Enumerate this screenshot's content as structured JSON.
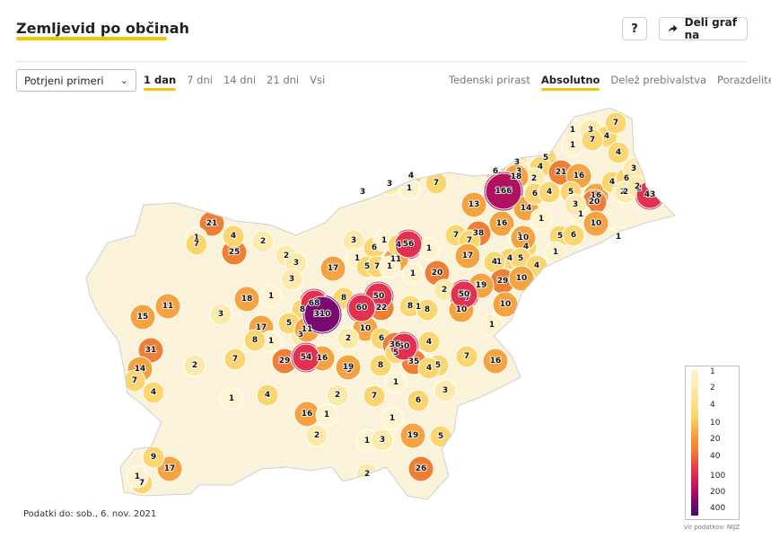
{
  "header": {
    "title": "Zemljevid po občinah",
    "help_label": "?",
    "share_label": "Deli graf na"
  },
  "controls": {
    "select_value": "Potrjeni primeri",
    "period_tabs": [
      "1 dan",
      "7 dni",
      "14 dni",
      "21 dni",
      "Vsi"
    ],
    "period_active": "1 dan",
    "mode_tabs": [
      "Tedenski prirast",
      "Absolutno",
      "Delež prebivalstva",
      "Porazdelitev"
    ],
    "mode_active": "Absolutno"
  },
  "footer": {
    "data_date": "Podatki do: sob., 6. nov. 2021",
    "source": "vir podatkov: NIJZ"
  },
  "legend": {
    "ticks": [
      "1",
      "2",
      "4",
      "10",
      "20",
      "40",
      "100",
      "200",
      "400"
    ]
  },
  "colors": {
    "accent": "#f5c400",
    "scale": [
      "#fff2cc",
      "#fde9a8",
      "#fbd56e",
      "#f5a340",
      "#ee7f35",
      "#e23050",
      "#b0125f",
      "#7b0a6e",
      "#3f0a6b"
    ],
    "no_data": "#ffffff"
  },
  "map_labels": [
    "1",
    "3",
    "4",
    "7",
    "1",
    "7",
    "4",
    "6",
    "3",
    "5",
    "4",
    "3",
    "2",
    "21",
    "16",
    "7",
    "5",
    "16",
    "4",
    "6",
    "2",
    "2",
    "3",
    "18",
    "20",
    "43",
    "2",
    "2",
    "4",
    "7",
    "1",
    "3",
    "3",
    "13",
    "166",
    "14",
    "6",
    "4",
    "1",
    "10",
    "1",
    "16",
    "1",
    "4",
    "1",
    "3",
    "56",
    "1",
    "7",
    "38",
    "7",
    "10",
    "1",
    "4",
    "5",
    "4",
    "5",
    "6",
    "1",
    "21",
    "25",
    "1",
    "4",
    "2",
    "17",
    "2",
    "3",
    "1",
    "6",
    "11",
    "20",
    "17",
    "4",
    "5",
    "1",
    "4",
    "7",
    "1",
    "1",
    "8",
    "1",
    "3",
    "3",
    "11",
    "29",
    "10",
    "1",
    "50",
    "7",
    "8",
    "7",
    "18",
    "68",
    "8",
    "60",
    "22",
    "8",
    "50",
    "19",
    "10",
    "2",
    "10",
    "1",
    "11",
    "15",
    "3",
    "17",
    "8",
    "3",
    "5",
    "11",
    "310",
    "10",
    "6",
    "4",
    "50",
    "2",
    "1",
    "31",
    "2",
    "7",
    "8",
    "3",
    "29",
    "54",
    "16",
    "19",
    "8",
    "36",
    "35",
    "5",
    "16",
    "7",
    "5",
    "14",
    "4",
    "7",
    "1",
    "4",
    "6",
    "1",
    "7",
    "2",
    "16",
    "1",
    "1",
    "3",
    "4",
    "19",
    "1",
    "2",
    "3",
    "5",
    "2",
    "26",
    "7",
    "17",
    "1",
    "9",
    "7"
  ],
  "chart_data": {
    "type": "choropleth",
    "metric": "Potrjeni primeri",
    "period": "1 dan",
    "mode": "Absolutno",
    "legend_ticks": [
      1,
      2,
      4,
      10,
      20,
      40,
      100,
      200,
      400
    ],
    "values": [
      1,
      3,
      4,
      7,
      1,
      7,
      4,
      6,
      3,
      5,
      4,
      3,
      2,
      21,
      16,
      7,
      5,
      16,
      4,
      6,
      2,
      2,
      3,
      18,
      20,
      43,
      2,
      2,
      4,
      7,
      1,
      3,
      3,
      13,
      166,
      14,
      6,
      4,
      1,
      10,
      1,
      16,
      1,
      4,
      1,
      3,
      56,
      1,
      7,
      38,
      7,
      10,
      1,
      4,
      5,
      4,
      5,
      6,
      1,
      21,
      25,
      1,
      4,
      2,
      17,
      2,
      3,
      1,
      6,
      11,
      20,
      17,
      4,
      5,
      1,
      4,
      7,
      1,
      1,
      8,
      1,
      3,
      3,
      11,
      29,
      10,
      1,
      50,
      7,
      8,
      7,
      18,
      68,
      8,
      60,
      22,
      8,
      50,
      19,
      10,
      2,
      10,
      1,
      11,
      15,
      3,
      17,
      8,
      3,
      5,
      11,
      310,
      10,
      6,
      4,
      50,
      2,
      1,
      31,
      2,
      7,
      8,
      3,
      29,
      54,
      16,
      19,
      8,
      36,
      35,
      5,
      16,
      7,
      5,
      14,
      4,
      7,
      1,
      4,
      6,
      1,
      7,
      2,
      16,
      1,
      1,
      3,
      4,
      19,
      1,
      2,
      3,
      5,
      2,
      26,
      7,
      17,
      1,
      9,
      7
    ]
  }
}
